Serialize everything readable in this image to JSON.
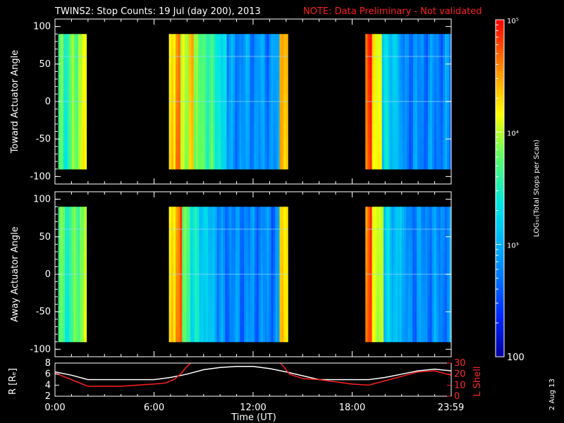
{
  "chart_data": [
    {
      "type": "heatmap",
      "title_prefix": "TWINS2: Stop Counts: 19 Jul (day 200), 2013",
      "title_note": "NOTE: Data Preliminary - Not validated",
      "ylabel": "Toward Actuator Angle",
      "ylim": [
        -110,
        110
      ],
      "yticks": [
        "100",
        "50",
        "0",
        "-50",
        "-100"
      ],
      "xlim": [
        0,
        24
      ],
      "coverage_intervals_hours": [
        [
          0.2,
          1.9
        ],
        [
          6.9,
          14.1
        ],
        [
          18.8,
          24.0
        ]
      ],
      "data_angle_range": [
        -90,
        90
      ],
      "colormap": "rainbow",
      "bands": [
        {
          "start": 0.2,
          "end": 0.5,
          "level": 0.55
        },
        {
          "start": 0.5,
          "end": 0.9,
          "level": 0.48
        },
        {
          "start": 0.9,
          "end": 1.4,
          "level": 0.58
        },
        {
          "start": 1.4,
          "end": 1.9,
          "level": 0.67
        },
        {
          "start": 6.9,
          "end": 7.3,
          "level": 0.72
        },
        {
          "start": 7.3,
          "end": 7.6,
          "level": 0.88
        },
        {
          "start": 7.6,
          "end": 8.1,
          "level": 0.64
        },
        {
          "start": 8.1,
          "end": 8.4,
          "level": 0.8
        },
        {
          "start": 8.4,
          "end": 9.2,
          "level": 0.58
        },
        {
          "start": 9.2,
          "end": 9.8,
          "level": 0.52
        },
        {
          "start": 9.8,
          "end": 10.4,
          "level": 0.42
        },
        {
          "start": 10.4,
          "end": 13.6,
          "level": 0.28
        },
        {
          "start": 13.6,
          "end": 14.1,
          "level": 0.78
        },
        {
          "start": 18.8,
          "end": 19.2,
          "level": 0.9
        },
        {
          "start": 19.2,
          "end": 19.8,
          "level": 0.7
        },
        {
          "start": 19.8,
          "end": 20.8,
          "level": 0.4
        },
        {
          "start": 20.8,
          "end": 24.0,
          "level": 0.26
        }
      ]
    },
    {
      "type": "heatmap",
      "ylabel": "Away Actuator Angle",
      "ylim": [
        -110,
        110
      ],
      "yticks": [
        "100",
        "50",
        "0",
        "-50",
        "-100"
      ],
      "xlim": [
        0,
        24
      ],
      "coverage_intervals_hours": [
        [
          0.2,
          1.9
        ],
        [
          6.9,
          14.1
        ],
        [
          18.8,
          24.0
        ]
      ],
      "data_angle_range": [
        -90,
        90
      ],
      "colormap": "rainbow",
      "bands": [
        {
          "start": 0.2,
          "end": 0.6,
          "level": 0.55
        },
        {
          "start": 0.6,
          "end": 1.0,
          "level": 0.48
        },
        {
          "start": 1.0,
          "end": 1.5,
          "level": 0.56
        },
        {
          "start": 1.5,
          "end": 1.9,
          "level": 0.63
        },
        {
          "start": 6.9,
          "end": 7.3,
          "level": 0.72
        },
        {
          "start": 7.3,
          "end": 7.7,
          "level": 0.86
        },
        {
          "start": 7.7,
          "end": 8.2,
          "level": 0.55
        },
        {
          "start": 8.2,
          "end": 9.0,
          "level": 0.44
        },
        {
          "start": 9.0,
          "end": 9.8,
          "level": 0.36
        },
        {
          "start": 9.8,
          "end": 13.6,
          "level": 0.26
        },
        {
          "start": 13.6,
          "end": 14.1,
          "level": 0.74
        },
        {
          "start": 18.8,
          "end": 19.2,
          "level": 0.88
        },
        {
          "start": 19.2,
          "end": 19.9,
          "level": 0.66
        },
        {
          "start": 19.9,
          "end": 21.0,
          "level": 0.38
        },
        {
          "start": 21.0,
          "end": 24.0,
          "level": 0.27
        }
      ]
    },
    {
      "type": "line",
      "ylabel_left": "R [Rₑ]",
      "ylabel_right": "L Shell",
      "xlabel": "Time (UT)",
      "xticks": [
        "0:00",
        "6:00",
        "12:00",
        "18:00",
        "23:59"
      ],
      "xtick_hours": [
        0,
        6,
        12,
        18,
        23.98
      ],
      "ylim_left": [
        2,
        8
      ],
      "yticks_left": [
        "8",
        "6",
        "4",
        "2"
      ],
      "ylim_right": [
        0,
        30
      ],
      "yticks_right": [
        "30",
        "20",
        "10",
        "0"
      ],
      "series": [
        {
          "axis": "left",
          "color": "#ffffff",
          "x": [
            0,
            1,
            2,
            3,
            4,
            5,
            6,
            7,
            8,
            9,
            10,
            11,
            12,
            13,
            14,
            15,
            16,
            17,
            18,
            19,
            20,
            21,
            22,
            23,
            24
          ],
          "y": [
            6.4,
            5.8,
            5.0,
            5.0,
            5.0,
            5.0,
            5.0,
            5.4,
            6.0,
            6.8,
            7.2,
            7.4,
            7.4,
            7.0,
            6.4,
            5.7,
            5.0,
            5.0,
            5.0,
            5.0,
            5.4,
            6.0,
            6.6,
            6.9,
            6.6
          ]
        },
        {
          "axis": "right",
          "color": "#ff2020",
          "x": [
            0,
            0.5,
            1,
            2,
            3,
            4,
            5,
            6,
            6.7,
            7.2,
            7.6,
            8.0,
            8.3,
            13.6,
            13.9,
            14.2,
            15,
            16,
            17,
            18,
            19,
            20,
            21,
            22,
            23,
            24
          ],
          "y": [
            21,
            18,
            15,
            9,
            9,
            9,
            10,
            11,
            12,
            15,
            20,
            27,
            31,
            31,
            26,
            20,
            16,
            15,
            13,
            11,
            10,
            14,
            18,
            22,
            23,
            19
          ]
        }
      ]
    }
  ],
  "colorbar": {
    "label": "LOG₁₀(Total Stops per Scan)",
    "tick_labels": [
      "10⁵",
      "10⁴",
      "10³",
      "100"
    ],
    "range_log": [
      2,
      5
    ]
  },
  "footer_date": "2 Aug 13"
}
